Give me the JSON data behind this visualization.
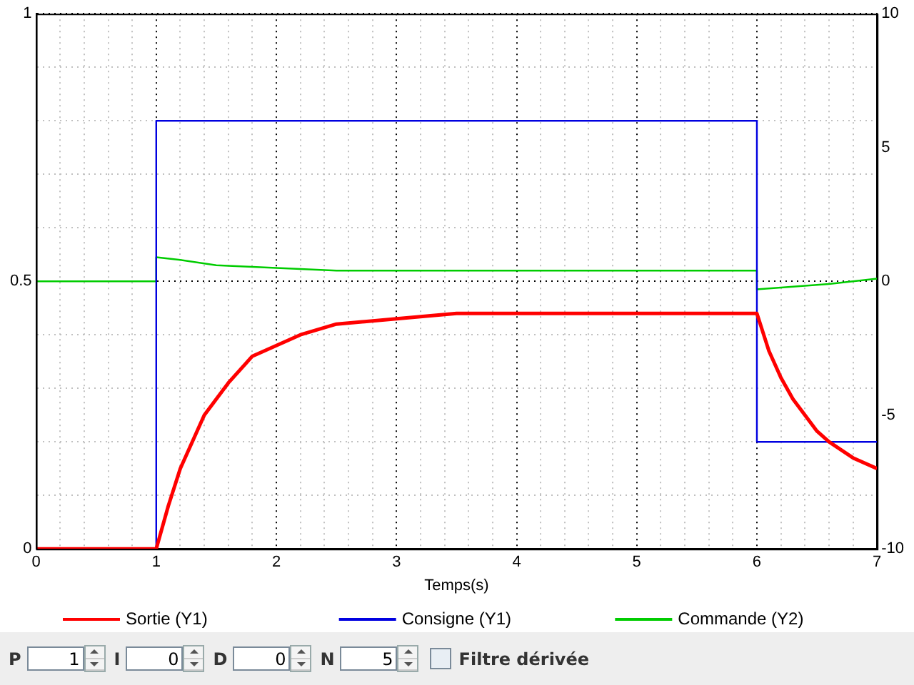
{
  "chart_data": {
    "type": "line",
    "xlabel": "Temps(s)",
    "xlim": [
      0,
      7
    ],
    "xticks": [
      0,
      {
        "value": 0.2,
        "label": null
      },
      {
        "value": 0.4,
        "label": null
      },
      {
        "value": 0.6,
        "label": null
      },
      {
        "value": 0.8,
        "label": null
      },
      1,
      {
        "value": 1.2,
        "label": null
      },
      {
        "value": 1.4,
        "label": null
      },
      {
        "value": 1.6,
        "label": null
      },
      {
        "value": 1.8,
        "label": null
      },
      2,
      {
        "value": 2.2,
        "label": null
      },
      {
        "value": 2.4,
        "label": null
      },
      {
        "value": 2.6,
        "label": null
      },
      {
        "value": 2.8,
        "label": null
      },
      3,
      {
        "value": 3.2,
        "label": null
      },
      {
        "value": 3.4,
        "label": null
      },
      {
        "value": 3.6,
        "label": null
      },
      {
        "value": 3.8,
        "label": null
      },
      4,
      {
        "value": 4.2,
        "label": null
      },
      {
        "value": 4.4,
        "label": null
      },
      {
        "value": 4.6,
        "label": null
      },
      {
        "value": 4.8,
        "label": null
      },
      5,
      {
        "value": 5.2,
        "label": null
      },
      {
        "value": 5.4,
        "label": null
      },
      {
        "value": 5.6,
        "label": null
      },
      {
        "value": 5.8,
        "label": null
      },
      6,
      {
        "value": 6.2,
        "label": null
      },
      {
        "value": 6.4,
        "label": null
      },
      {
        "value": 6.6,
        "label": null
      },
      {
        "value": 6.8,
        "label": null
      },
      7
    ],
    "ylim": [
      0,
      1
    ],
    "yticks": [
      0,
      {
        "value": 0.1,
        "label": null
      },
      {
        "value": 0.2,
        "label": null
      },
      {
        "value": 0.3,
        "label": null
      },
      {
        "value": 0.4,
        "label": null
      },
      0.5,
      {
        "value": 0.6,
        "label": null
      },
      {
        "value": 0.7,
        "label": null
      },
      {
        "value": 0.8,
        "label": null
      },
      {
        "value": 0.9,
        "label": null
      },
      1
    ],
    "y2lim": [
      -10,
      10
    ],
    "y2ticks": [
      -10,
      -5,
      0,
      5,
      10
    ],
    "grid": true,
    "legend": "bottom",
    "marker": "none",
    "series": [
      {
        "name": "Sortie (Y1)",
        "color": "#ff0000",
        "x": [
          0,
          1,
          1.1,
          1.2,
          1.3,
          1.4,
          1.5,
          1.6,
          1.8,
          2,
          2.2,
          2.5,
          3,
          3.5,
          4,
          6,
          6.1,
          6.2,
          6.3,
          6.4,
          6.5,
          6.6,
          6.8,
          7
        ],
        "values": [
          0,
          0,
          0.08,
          0.15,
          0.2,
          0.25,
          0.28,
          0.31,
          0.36,
          0.38,
          0.4,
          0.42,
          0.43,
          0.44,
          0.44,
          0.44,
          0.37,
          0.32,
          0.28,
          0.25,
          0.22,
          0.2,
          0.17,
          0.15
        ]
      },
      {
        "name": "Consigne (Y1)",
        "color": "#0000e0",
        "x": [
          0,
          1,
          1,
          6,
          6,
          7
        ],
        "values": [
          0,
          0,
          0.8,
          0.8,
          0.2,
          0.2
        ]
      },
      {
        "name": "Commande (Y2)",
        "color": "#00cc00",
        "axis": "y2",
        "x": [
          0,
          1,
          1,
          1.2,
          1.5,
          2,
          2.5,
          6,
          6,
          6.3,
          6.6,
          7
        ],
        "values": [
          0,
          0,
          0.9,
          0.8,
          0.6,
          0.5,
          0.4,
          0.4,
          -0.3,
          -0.2,
          -0.1,
          0.1
        ]
      }
    ],
    "annotations": [
      "P",
      "1",
      "I",
      "0",
      "D",
      "0",
      "N",
      "5",
      "Filtre dérivée"
    ]
  }
}
